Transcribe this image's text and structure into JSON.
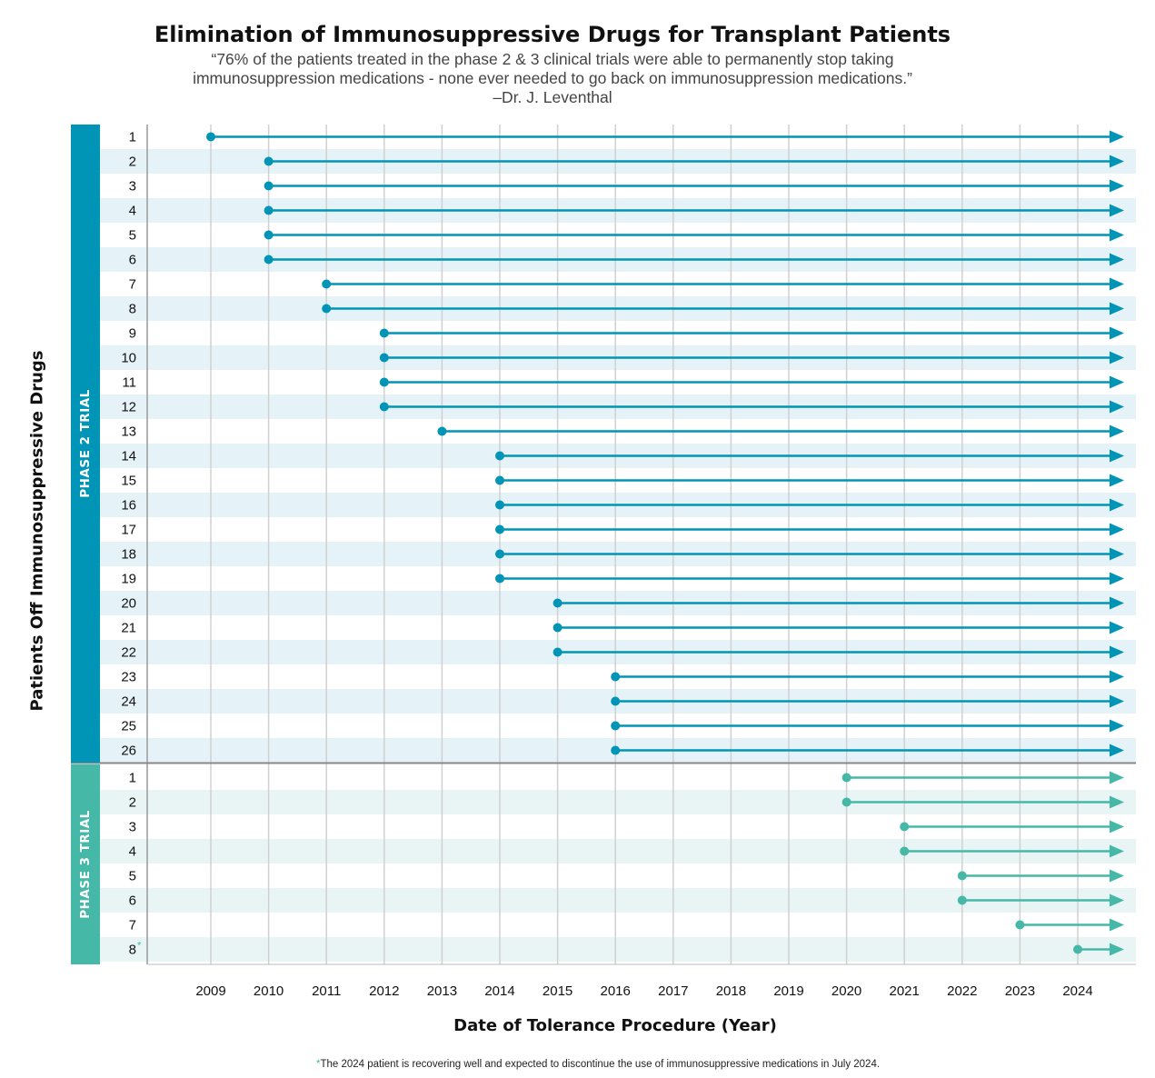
{
  "header": {
    "title": "Elimination of Immunosuppressive Drugs for Transplant Patients",
    "quote_line1": "“76% of the patients treated in the phase 2 & 3 clinical trials were able to permanently stop taking",
    "quote_line2": "immunosuppression medications - none ever needed to go back on immunosuppression medications.”",
    "quote_attribution": "–Dr. J. Leventhal"
  },
  "footnote": {
    "marker": "*",
    "text": "The 2024 patient is recovering well and expected to discontinue the use of immunosuppressive medications in July 2024."
  },
  "colors": {
    "phase2": "#0095b6",
    "phase3": "#45b8a8",
    "phase2_stripe": "#e5f3f9",
    "phase3_stripe": "#e8f5f4",
    "grid": "#d0d0d0",
    "divider": "#888888"
  },
  "chart_data": {
    "type": "timeline",
    "title": "Elimination of Immunosuppressive Drugs for Transplant Patients",
    "xlabel": "Date of Tolerance Procedure (Year)",
    "ylabel": "Patients Off Immunosuppressive Drugs",
    "x_ticks": [
      2009,
      2010,
      2011,
      2012,
      2013,
      2014,
      2015,
      2016,
      2017,
      2018,
      2019,
      2020,
      2021,
      2022,
      2023,
      2024
    ],
    "xlim": [
      2008,
      2024.8
    ],
    "grid": "vertical",
    "bar_ends": "arrow extends to present",
    "groups": [
      {
        "name": "PHASE 2 TRIAL",
        "patients": [
          "1",
          "2",
          "3",
          "4",
          "5",
          "6",
          "7",
          "8",
          "9",
          "10",
          "11",
          "12",
          "13",
          "14",
          "15",
          "16",
          "17",
          "18",
          "19",
          "20",
          "21",
          "22",
          "23",
          "24",
          "25",
          "26"
        ],
        "start_years": [
          2009,
          2010,
          2010,
          2010,
          2010,
          2010,
          2011,
          2011,
          2012,
          2012,
          2012,
          2012,
          2013,
          2014,
          2014,
          2014,
          2014,
          2014,
          2014,
          2015,
          2015,
          2015,
          2016,
          2016,
          2016,
          2016
        ]
      },
      {
        "name": "PHASE 3 TRIAL",
        "patients": [
          "1",
          "2",
          "3",
          "4",
          "5",
          "6",
          "7",
          "8"
        ],
        "start_years": [
          2020,
          2020,
          2021,
          2021,
          2022,
          2022,
          2023,
          2024
        ],
        "annotations": [
          {
            "patient": "8",
            "marker": "*"
          }
        ]
      }
    ]
  }
}
